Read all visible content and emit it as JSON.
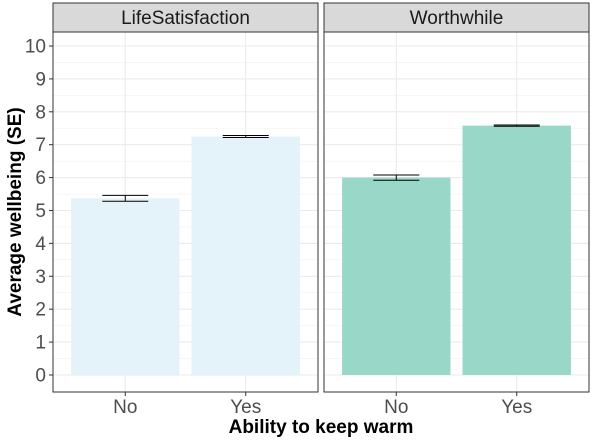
{
  "chart_data": {
    "type": "bar",
    "xlabel": "Ability to keep warm",
    "ylabel": "Average wellbeing (SE)",
    "ylim": [
      0,
      10
    ],
    "yticks": [
      0,
      1,
      2,
      3,
      4,
      5,
      6,
      7,
      8,
      9,
      10
    ],
    "categories": [
      "No",
      "Yes"
    ],
    "grid": true,
    "legend": "none",
    "facets": [
      {
        "name": "LifeSatisfaction",
        "color": "#e4f3f9",
        "values": [
          5.37,
          7.25
        ],
        "se": [
          0.09,
          0.03
        ]
      },
      {
        "name": "Worthwhile",
        "color": "#99d8c9",
        "values": [
          6.0,
          7.58
        ],
        "se": [
          0.08,
          0.02
        ]
      }
    ]
  }
}
